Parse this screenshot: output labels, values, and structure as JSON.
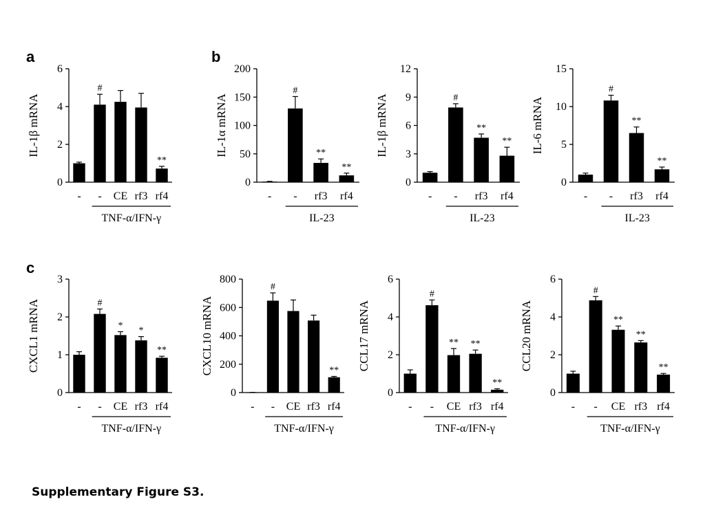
{
  "caption": "Supplementary Figure S3.",
  "panel_letters": [
    "a",
    "b",
    "c"
  ],
  "chart_data": [
    {
      "type": "bar",
      "ylabel": "IL-1β mRNA",
      "ylim": [
        0,
        6
      ],
      "yticks": [
        0,
        2,
        4,
        6
      ],
      "categories": [
        "-",
        "-",
        "CE",
        "rf3",
        "rf4"
      ],
      "values": [
        1.0,
        4.1,
        4.25,
        3.95,
        0.72
      ],
      "errors": [
        0.06,
        0.55,
        0.6,
        0.75,
        0.12
      ],
      "annotations": [
        "",
        "#",
        "",
        "",
        "**"
      ],
      "group_label": "TNF-α/IFN-γ"
    },
    {
      "type": "bar",
      "ylabel": "IL-1α mRNA",
      "ylim": [
        0,
        200
      ],
      "yticks": [
        0,
        50,
        100,
        150,
        200
      ],
      "categories": [
        "-",
        "-",
        "rf3",
        "rf4"
      ],
      "values": [
        1,
        130,
        34,
        12
      ],
      "errors": [
        0.5,
        21,
        7,
        4
      ],
      "annotations": [
        "",
        "#",
        "**",
        "**"
      ],
      "group_label": "IL-23"
    },
    {
      "type": "bar",
      "ylabel": "IL-1β mRNA",
      "ylim": [
        0,
        12
      ],
      "yticks": [
        0,
        3,
        6,
        9,
        12
      ],
      "categories": [
        "-",
        "-",
        "rf3",
        "rf4"
      ],
      "values": [
        1.0,
        7.9,
        4.7,
        2.8
      ],
      "errors": [
        0.12,
        0.4,
        0.4,
        0.9
      ],
      "annotations": [
        "",
        "#",
        "**",
        "**"
      ],
      "group_label": "IL-23"
    },
    {
      "type": "bar",
      "ylabel": "IL-6 mRNA",
      "ylim": [
        0,
        15
      ],
      "yticks": [
        0,
        5,
        10,
        15
      ],
      "categories": [
        "-",
        "-",
        "rf3",
        "rf4"
      ],
      "values": [
        1.0,
        10.8,
        6.5,
        1.7
      ],
      "errors": [
        0.2,
        0.7,
        0.8,
        0.3
      ],
      "annotations": [
        "",
        "#",
        "**",
        "**"
      ],
      "group_label": "IL-23"
    },
    {
      "type": "bar",
      "ylabel": "CXCL1 mRNA",
      "ylim": [
        0,
        3
      ],
      "yticks": [
        0,
        1,
        2,
        3
      ],
      "categories": [
        "-",
        "-",
        "CE",
        "rf3",
        "rf4"
      ],
      "values": [
        1.0,
        2.08,
        1.52,
        1.38,
        0.92
      ],
      "errors": [
        0.08,
        0.13,
        0.09,
        0.1,
        0.04
      ],
      "annotations": [
        "",
        "#",
        "*",
        "*",
        "**"
      ],
      "group_label": "TNF-α/IFN-γ"
    },
    {
      "type": "bar",
      "ylabel": "CXCL10 mRNA",
      "ylim": [
        0,
        800
      ],
      "yticks": [
        0,
        200,
        400,
        600,
        800
      ],
      "categories": [
        "-",
        "-",
        "CE",
        "rf3",
        "rf4"
      ],
      "values": [
        1,
        648,
        575,
        508,
        108
      ],
      "errors": [
        0.5,
        55,
        78,
        38,
        6
      ],
      "annotations": [
        "",
        "#",
        "",
        "",
        "**"
      ],
      "group_label": "TNF-α/IFN-γ"
    },
    {
      "type": "bar",
      "ylabel": "CCL17 mRNA",
      "ylim": [
        0,
        6
      ],
      "yticks": [
        0,
        2,
        4,
        6
      ],
      "categories": [
        "-",
        "-",
        "CE",
        "rf3",
        "rf4"
      ],
      "values": [
        1.0,
        4.62,
        1.98,
        2.05,
        0.15
      ],
      "errors": [
        0.2,
        0.28,
        0.35,
        0.2,
        0.05
      ],
      "annotations": [
        "",
        "#",
        "**",
        "**",
        "**"
      ],
      "group_label": "TNF-α/IFN-γ"
    },
    {
      "type": "bar",
      "ylabel": "CCL20 mRNA",
      "ylim": [
        0,
        6
      ],
      "yticks": [
        0,
        2,
        4,
        6
      ],
      "categories": [
        "-",
        "-",
        "CE",
        "rf3",
        "rf4"
      ],
      "values": [
        1.0,
        4.88,
        3.32,
        2.65,
        0.95
      ],
      "errors": [
        0.13,
        0.2,
        0.2,
        0.1,
        0.06
      ],
      "annotations": [
        "",
        "#",
        "**",
        "**",
        "**"
      ],
      "group_label": "TNF-α/IFN-γ"
    }
  ]
}
